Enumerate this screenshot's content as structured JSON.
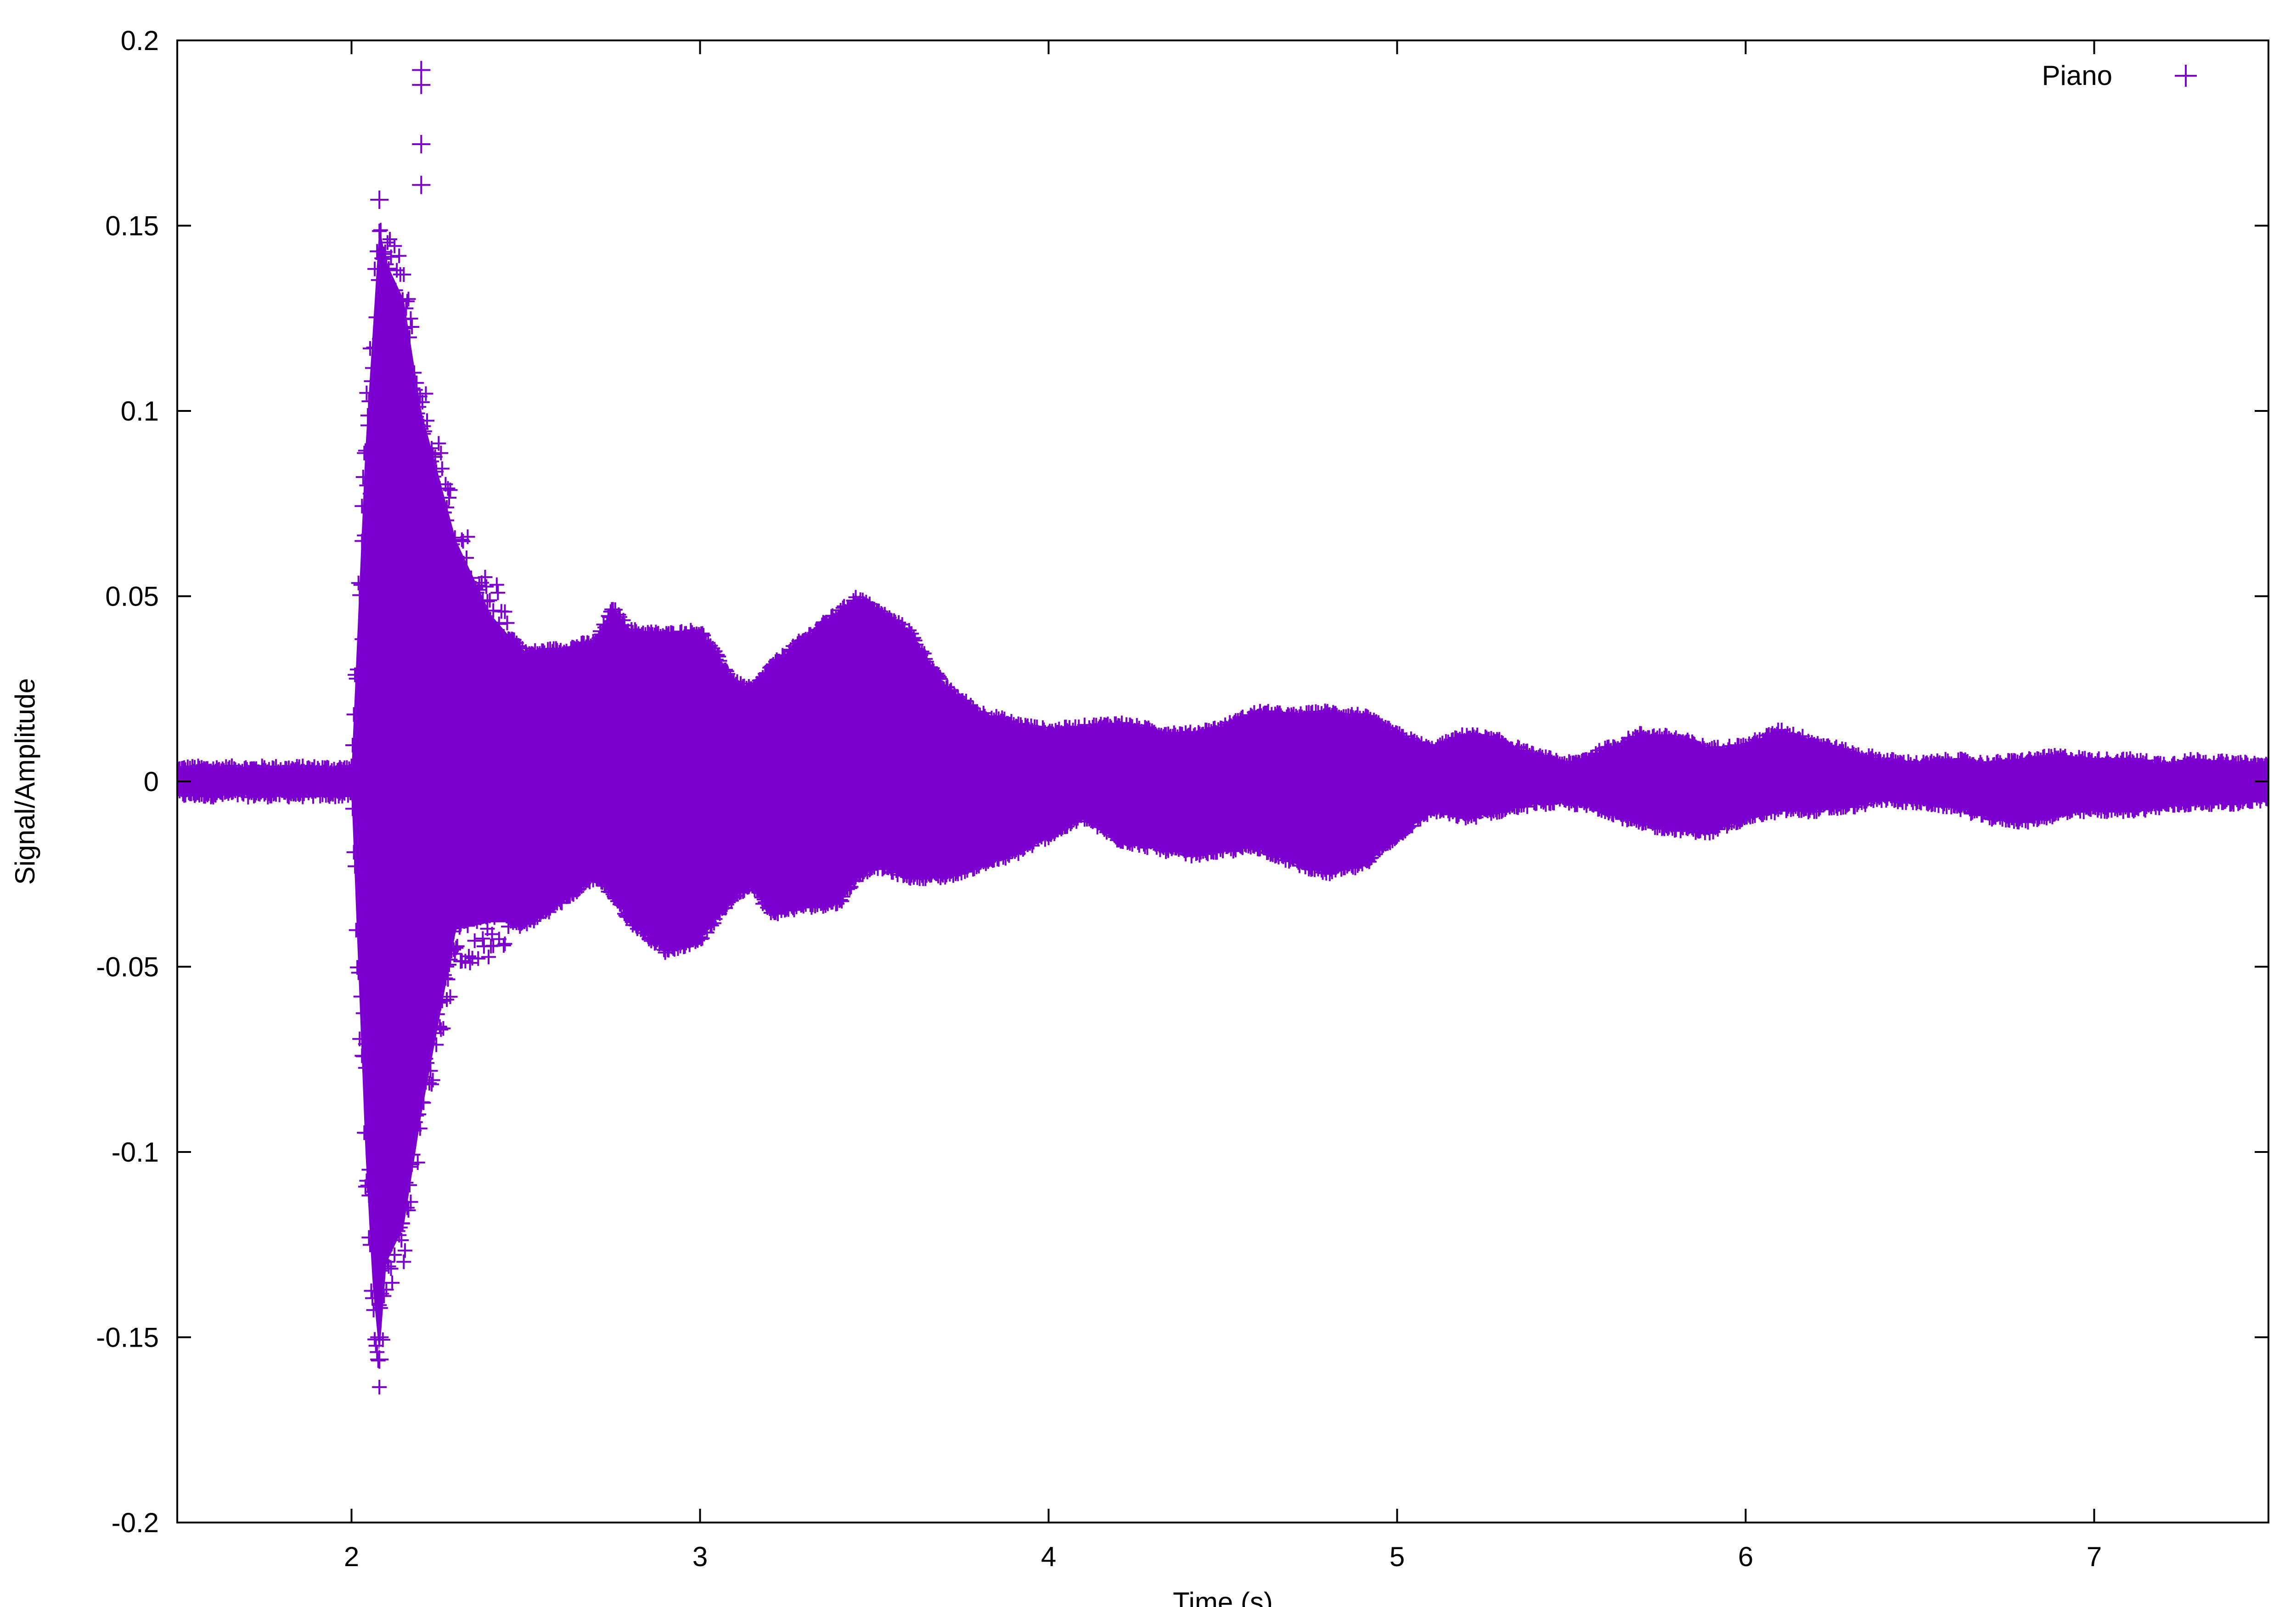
{
  "chart_data": {
    "type": "scatter",
    "title": "",
    "xlabel": "Time (s)",
    "ylabel": "Signal/Amplitude",
    "xlim": [
      1.5,
      7.5
    ],
    "ylim": [
      -0.2,
      0.2
    ],
    "x_ticks": [
      2,
      3,
      4,
      5,
      6,
      7
    ],
    "x_tick_labels": [
      "2",
      "3",
      "4",
      "5",
      "6",
      "7"
    ],
    "y_ticks": [
      -0.2,
      -0.15,
      -0.1,
      -0.05,
      0,
      0.05,
      0.1,
      0.15,
      0.2
    ],
    "y_tick_labels": [
      "-0.2",
      "-0.15",
      "-0.1",
      "-0.05",
      "0",
      "0.05",
      "0.1",
      "0.15",
      "0.2"
    ],
    "grid": false,
    "legend": {
      "position": "top-right",
      "entries": [
        "Piano"
      ]
    },
    "marker": "plus",
    "series": [
      {
        "name": "Piano",
        "color": "#7b00d0",
        "envelope": {
          "x": [
            1.5,
            2.0,
            2.04,
            2.06,
            2.08,
            2.1,
            2.15,
            2.2,
            2.3,
            2.4,
            2.5,
            2.6,
            2.7,
            2.75,
            2.8,
            2.9,
            3.0,
            3.1,
            3.15,
            3.2,
            3.3,
            3.4,
            3.45,
            3.5,
            3.6,
            3.7,
            3.8,
            3.9,
            4.0,
            4.1,
            4.2,
            4.3,
            4.4,
            4.5,
            4.6,
            4.7,
            4.8,
            4.9,
            5.0,
            5.1,
            5.2,
            5.3,
            5.4,
            5.5,
            5.6,
            5.7,
            5.8,
            5.9,
            6.0,
            6.1,
            6.2,
            6.3,
            6.4,
            6.5,
            6.6,
            6.7,
            6.8,
            6.9,
            7.0,
            7.1,
            7.2,
            7.3,
            7.4,
            7.5
          ],
          "upper": [
            0.003,
            0.003,
            0.09,
            0.12,
            0.15,
            0.14,
            0.13,
            0.1,
            0.065,
            0.045,
            0.034,
            0.035,
            0.037,
            0.046,
            0.04,
            0.039,
            0.04,
            0.026,
            0.024,
            0.03,
            0.038,
            0.045,
            0.049,
            0.046,
            0.04,
            0.025,
            0.018,
            0.015,
            0.013,
            0.014,
            0.015,
            0.013,
            0.012,
            0.014,
            0.018,
            0.017,
            0.018,
            0.017,
            0.012,
            0.008,
            0.012,
            0.01,
            0.006,
            0.004,
            0.008,
            0.012,
            0.011,
            0.008,
            0.009,
            0.013,
            0.01,
            0.007,
            0.005,
            0.004,
            0.005,
            0.004,
            0.005,
            0.006,
            0.005,
            0.005,
            0.004,
            0.005,
            0.004,
            0.004
          ],
          "lower": [
            -0.003,
            -0.003,
            -0.1,
            -0.135,
            -0.155,
            -0.13,
            -0.12,
            -0.09,
            -0.04,
            -0.038,
            -0.038,
            -0.032,
            -0.025,
            -0.03,
            -0.037,
            -0.045,
            -0.042,
            -0.03,
            -0.027,
            -0.035,
            -0.033,
            -0.032,
            -0.025,
            -0.022,
            -0.025,
            -0.025,
            -0.022,
            -0.019,
            -0.014,
            -0.009,
            -0.015,
            -0.017,
            -0.019,
            -0.018,
            -0.017,
            -0.021,
            -0.024,
            -0.022,
            -0.014,
            -0.007,
            -0.009,
            -0.007,
            -0.005,
            -0.005,
            -0.007,
            -0.011,
            -0.012,
            -0.013,
            -0.009,
            -0.007,
            -0.007,
            -0.006,
            -0.004,
            -0.005,
            -0.006,
            -0.009,
            -0.01,
            -0.008,
            -0.007,
            -0.007,
            -0.006,
            -0.005,
            -0.005,
            -0.004
          ]
        },
        "outliers": [
          {
            "x": 2.2,
            "y": 0.192
          },
          {
            "x": 2.2,
            "y": 0.188
          },
          {
            "x": 2.2,
            "y": 0.172
          },
          {
            "x": 2.2,
            "y": 0.161
          },
          {
            "x": 2.08,
            "y": 0.157
          },
          {
            "x": 2.08,
            "y": -0.156
          },
          {
            "x": 2.08,
            "y": -0.15
          }
        ]
      }
    ]
  }
}
